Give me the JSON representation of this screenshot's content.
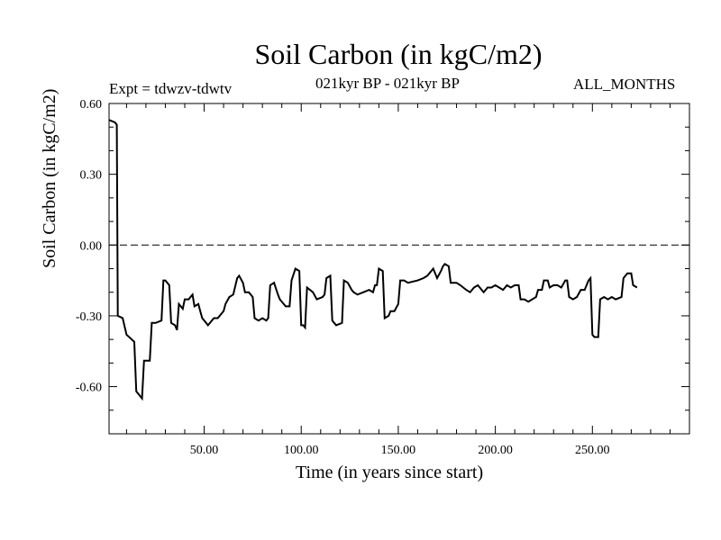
{
  "header": {
    "title": "Soil Carbon (in kgC/m2)",
    "experiment": "Expt = tdwzv-tdwtv",
    "period": "021kyr BP - 021kyr BP",
    "months": "ALL_MONTHS"
  },
  "chart_data": {
    "type": "line",
    "xlabel": "Time (in years since start)",
    "ylabel": "Soil Carbon (in kgC/m2)",
    "xlim": [
      1,
      300
    ],
    "ylim": [
      -0.8,
      0.6
    ],
    "x_ticks": [
      50,
      100,
      150,
      200,
      250
    ],
    "x_tick_labels": [
      "50.00",
      "100.00",
      "150.00",
      "200.00",
      "250.00"
    ],
    "y_ticks": [
      0.6,
      0.3,
      0.0,
      -0.3,
      -0.6
    ],
    "y_tick_labels": [
      "0.60",
      "0.30",
      "0.00",
      "-0.30",
      "-0.60"
    ],
    "reference_line": 0.0,
    "grid": false,
    "series": [
      {
        "values": [
          [
            1,
            0.53
          ],
          [
            4,
            0.52
          ],
          [
            5,
            0.51
          ],
          [
            5.5,
            -0.3
          ],
          [
            8,
            -0.31
          ],
          [
            10,
            -0.38
          ],
          [
            14,
            -0.41
          ],
          [
            15,
            -0.62
          ],
          [
            17,
            -0.64
          ],
          [
            18,
            -0.65
          ],
          [
            19,
            -0.49
          ],
          [
            22,
            -0.49
          ],
          [
            23,
            -0.33
          ],
          [
            25,
            -0.33
          ],
          [
            28,
            -0.32
          ],
          [
            29,
            -0.15
          ],
          [
            30,
            -0.15
          ],
          [
            32,
            -0.17
          ],
          [
            33,
            -0.33
          ],
          [
            35,
            -0.34
          ],
          [
            36,
            -0.36
          ],
          [
            37,
            -0.25
          ],
          [
            39,
            -0.27
          ],
          [
            40,
            -0.23
          ],
          [
            42,
            -0.23
          ],
          [
            44,
            -0.21
          ],
          [
            45,
            -0.26
          ],
          [
            47,
            -0.25
          ],
          [
            48,
            -0.28
          ],
          [
            49,
            -0.31
          ],
          [
            51,
            -0.33
          ],
          [
            52,
            -0.34
          ],
          [
            55,
            -0.31
          ],
          [
            57,
            -0.31
          ],
          [
            60,
            -0.28
          ],
          [
            61,
            -0.25
          ],
          [
            63,
            -0.22
          ],
          [
            65,
            -0.21
          ],
          [
            67,
            -0.14
          ],
          [
            68,
            -0.13
          ],
          [
            70,
            -0.16
          ],
          [
            71,
            -0.2
          ],
          [
            73,
            -0.2
          ],
          [
            75,
            -0.22
          ],
          [
            76,
            -0.31
          ],
          [
            78,
            -0.32
          ],
          [
            80,
            -0.31
          ],
          [
            82,
            -0.32
          ],
          [
            83,
            -0.31
          ],
          [
            84,
            -0.17
          ],
          [
            86,
            -0.16
          ],
          [
            88,
            -0.21
          ],
          [
            89,
            -0.23
          ],
          [
            92,
            -0.26
          ],
          [
            94,
            -0.26
          ],
          [
            95,
            -0.15
          ],
          [
            97,
            -0.1
          ],
          [
            99,
            -0.11
          ],
          [
            100,
            -0.34
          ],
          [
            101,
            -0.34
          ],
          [
            102,
            -0.35
          ],
          [
            103,
            -0.18
          ],
          [
            106,
            -0.2
          ],
          [
            108,
            -0.23
          ],
          [
            111,
            -0.22
          ],
          [
            112,
            -0.21
          ],
          [
            113,
            -0.14
          ],
          [
            115,
            -0.13
          ],
          [
            116,
            -0.32
          ],
          [
            118,
            -0.34
          ],
          [
            121,
            -0.33
          ],
          [
            122,
            -0.15
          ],
          [
            124,
            -0.16
          ],
          [
            126,
            -0.19
          ],
          [
            127,
            -0.2
          ],
          [
            129,
            -0.21
          ],
          [
            132,
            -0.2
          ],
          [
            135,
            -0.19
          ],
          [
            137,
            -0.2
          ],
          [
            138,
            -0.17
          ],
          [
            139,
            -0.17
          ],
          [
            140,
            -0.1
          ],
          [
            142,
            -0.11
          ],
          [
            143,
            -0.31
          ],
          [
            145,
            -0.3
          ],
          [
            146,
            -0.28
          ],
          [
            148,
            -0.28
          ],
          [
            150,
            -0.25
          ],
          [
            151,
            -0.15
          ],
          [
            153,
            -0.15
          ],
          [
            155,
            -0.16
          ],
          [
            160,
            -0.15
          ],
          [
            163,
            -0.14
          ],
          [
            165,
            -0.13
          ],
          [
            167,
            -0.11
          ],
          [
            168,
            -0.1
          ],
          [
            170,
            -0.14
          ],
          [
            172,
            -0.11
          ],
          [
            173,
            -0.09
          ],
          [
            174,
            -0.08
          ],
          [
            176,
            -0.09
          ],
          [
            177,
            -0.16
          ],
          [
            180,
            -0.16
          ],
          [
            182,
            -0.17
          ],
          [
            185,
            -0.19
          ],
          [
            187,
            -0.2
          ],
          [
            189,
            -0.18
          ],
          [
            191,
            -0.17
          ],
          [
            193,
            -0.19
          ],
          [
            194,
            -0.2
          ],
          [
            196,
            -0.18
          ],
          [
            198,
            -0.18
          ],
          [
            200,
            -0.17
          ],
          [
            202,
            -0.18
          ],
          [
            204,
            -0.19
          ],
          [
            206,
            -0.17
          ],
          [
            208,
            -0.18
          ],
          [
            210,
            -0.17
          ],
          [
            212,
            -0.17
          ],
          [
            213,
            -0.23
          ],
          [
            215,
            -0.23
          ],
          [
            217,
            -0.24
          ],
          [
            219,
            -0.23
          ],
          [
            221,
            -0.22
          ],
          [
            222,
            -0.19
          ],
          [
            224,
            -0.19
          ],
          [
            225,
            -0.15
          ],
          [
            227,
            -0.15
          ],
          [
            228,
            -0.18
          ],
          [
            230,
            -0.17
          ],
          [
            232,
            -0.17
          ],
          [
            234,
            -0.18
          ],
          [
            236,
            -0.15
          ],
          [
            237,
            -0.15
          ],
          [
            238,
            -0.22
          ],
          [
            240,
            -0.23
          ],
          [
            242,
            -0.22
          ],
          [
            244,
            -0.19
          ],
          [
            246,
            -0.19
          ],
          [
            248,
            -0.15
          ],
          [
            249,
            -0.14
          ],
          [
            250,
            -0.38
          ],
          [
            251,
            -0.39
          ],
          [
            253,
            -0.39
          ],
          [
            254,
            -0.23
          ],
          [
            256,
            -0.22
          ],
          [
            258,
            -0.23
          ],
          [
            260,
            -0.22
          ],
          [
            262,
            -0.23
          ],
          [
            265,
            -0.22
          ],
          [
            266,
            -0.14
          ],
          [
            268,
            -0.12
          ],
          [
            270,
            -0.12
          ],
          [
            271,
            -0.17
          ],
          [
            273,
            -0.18
          ]
        ]
      }
    ]
  }
}
